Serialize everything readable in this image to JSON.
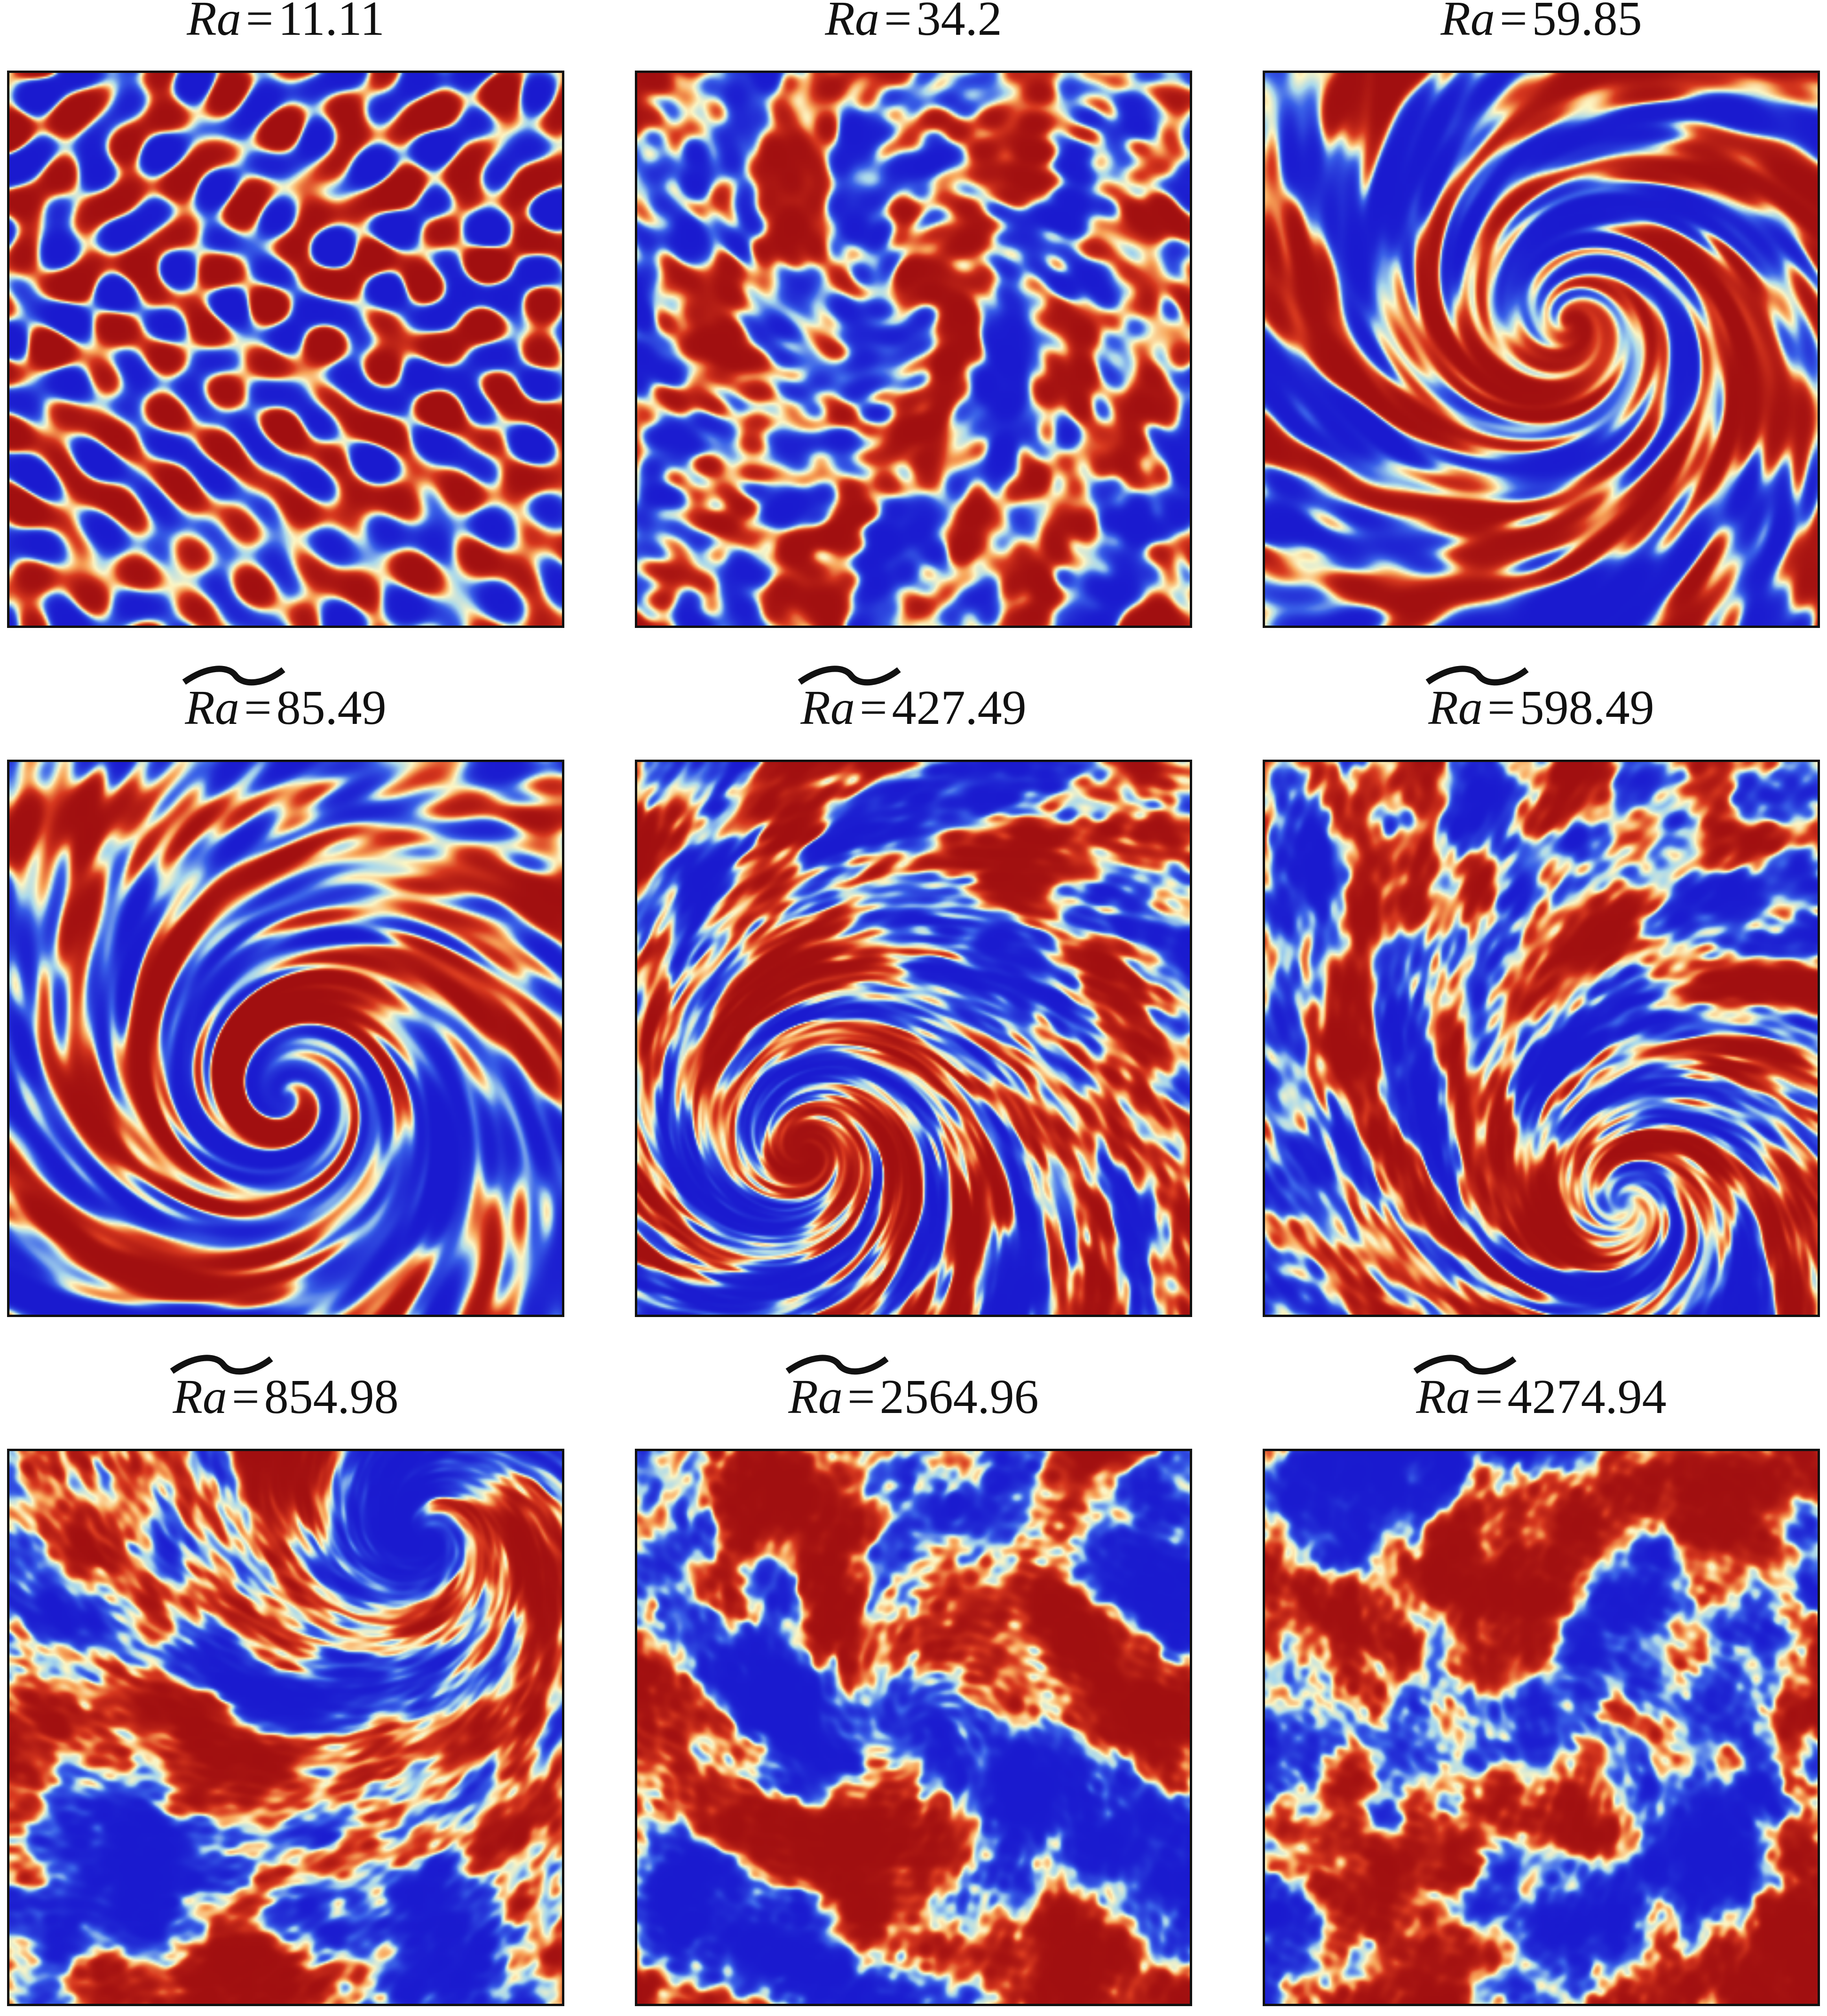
{
  "figure": {
    "symbol": "Ra",
    "equals": "=",
    "panels": [
      {
        "value": "11.11"
      },
      {
        "value": "34.2"
      },
      {
        "value": "59.85"
      },
      {
        "value": "85.49"
      },
      {
        "value": "427.49"
      },
      {
        "value": "598.49"
      },
      {
        "value": "854.98"
      },
      {
        "value": "2564.96"
      },
      {
        "value": "4274.94"
      }
    ]
  },
  "colormap": [
    "#1a1acf",
    "#3a62e8",
    "#a9d8ec",
    "#fdf6c4",
    "#f8a55a",
    "#d8391f",
    "#a10f10"
  ]
}
